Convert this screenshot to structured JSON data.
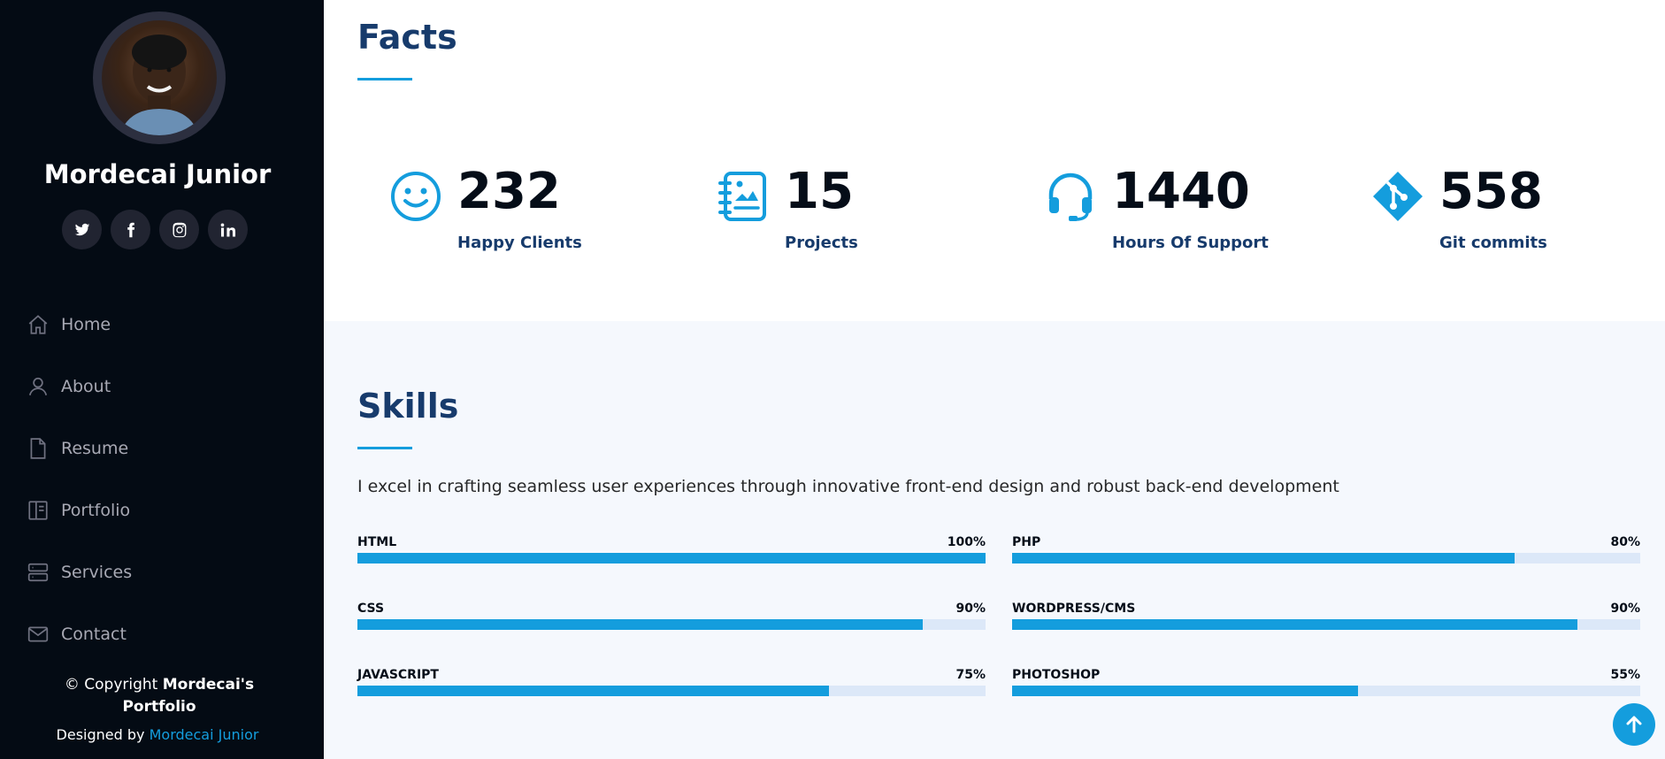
{
  "profile": {
    "name": "Mordecai Junior"
  },
  "social": [
    {
      "name": "twitter-icon"
    },
    {
      "name": "facebook-icon"
    },
    {
      "name": "instagram-icon"
    },
    {
      "name": "linkedin-icon"
    }
  ],
  "nav": [
    {
      "label": "Home",
      "icon": "home-icon"
    },
    {
      "label": "About",
      "icon": "person-icon"
    },
    {
      "label": "Resume",
      "icon": "file-icon"
    },
    {
      "label": "Portfolio",
      "icon": "book-icon"
    },
    {
      "label": "Services",
      "icon": "server-icon"
    },
    {
      "label": "Contact",
      "icon": "envelope-icon"
    }
  ],
  "footer": {
    "copyright_prefix": "© Copyright ",
    "copyright_name": "Mordecai's Portfolio",
    "designed_prefix": "Designed by ",
    "designed_link": "Mordecai Junior"
  },
  "facts": {
    "title": "Facts",
    "items": [
      {
        "value": "232",
        "label": "Happy Clients",
        "icon": "smile-icon"
      },
      {
        "value": "15",
        "label": "Projects",
        "icon": "journal-richtext-icon"
      },
      {
        "value": "1440",
        "label": "Hours Of Support",
        "icon": "headset-icon"
      },
      {
        "value": "558",
        "label": "Git commits",
        "icon": "git-icon"
      }
    ]
  },
  "skills": {
    "title": "Skills",
    "description": "I excel in crafting seamless user experiences through innovative front-end design and robust back-end development",
    "left": [
      {
        "name": "HTML",
        "value": "100%",
        "percent": 100
      },
      {
        "name": "CSS",
        "value": "90%",
        "percent": 90
      },
      {
        "name": "JAVASCRIPT",
        "value": "75%",
        "percent": 75
      }
    ],
    "right": [
      {
        "name": "PHP",
        "value": "80%",
        "percent": 80
      },
      {
        "name": "WORDPRESS/CMS",
        "value": "90%",
        "percent": 90
      },
      {
        "name": "PHOTOSHOP",
        "value": "55%",
        "percent": 55
      }
    ]
  },
  "colors": {
    "accent": "#149ddd",
    "sidebar": "#040b14",
    "heading": "#173b6c",
    "track": "#dce8f8"
  }
}
